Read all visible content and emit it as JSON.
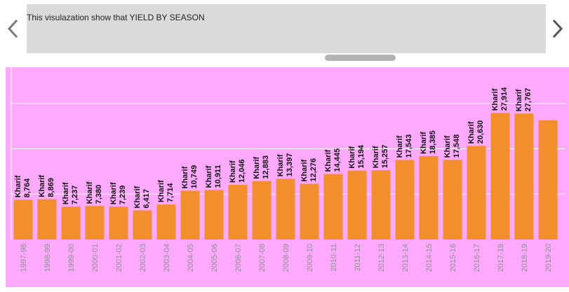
{
  "caption": {
    "text": "This visulazation show that YIELD BY SEASON"
  },
  "icons": {
    "prev": "chevron-left-icon",
    "next": "chevron-right-icon"
  },
  "colors": {
    "bar": "#f28e2b",
    "panel_bg": "#ffaaff",
    "caption_bg": "#dadada",
    "arrow": "#7a7a7a"
  },
  "chart_data": {
    "type": "bar",
    "categories": [
      "1997-98",
      "1998-99",
      "1999-00",
      "2000-01",
      "2001-02",
      "2002-03",
      "2003-04",
      "2004-05",
      "2005-06",
      "2006-07",
      "2007-08",
      "2008-09",
      "2009-10",
      "2010-11",
      "2011-12",
      "2012-13",
      "2013-14",
      "2014-15",
      "2015-16",
      "2016-17",
      "2017-18",
      "2018-19",
      "2019-20"
    ],
    "series": [
      {
        "name": "Kharif",
        "values": [
          8764,
          8869,
          7237,
          7380,
          7239,
          6417,
          7714,
          10749,
          10911,
          12046,
          12883,
          13397,
          12276,
          14445,
          15194,
          15257,
          17543,
          18385,
          17548,
          20630,
          27914,
          27767,
          26300
        ]
      }
    ],
    "data_labels": [
      "8,764",
      "8,869",
      "7,237",
      "7,380",
      "7,239",
      "6,417",
      "7,714",
      "10,749",
      "10,911",
      "12,046",
      "12,883",
      "13,397",
      "12,276",
      "14,445",
      "15,194",
      "15,257",
      "17,543",
      "18,385",
      "17,548",
      "20,630",
      "27,914",
      "27,767",
      ""
    ],
    "ylim": [
      0,
      40000
    ],
    "grid": true,
    "xlabel": "",
    "ylabel": ""
  }
}
